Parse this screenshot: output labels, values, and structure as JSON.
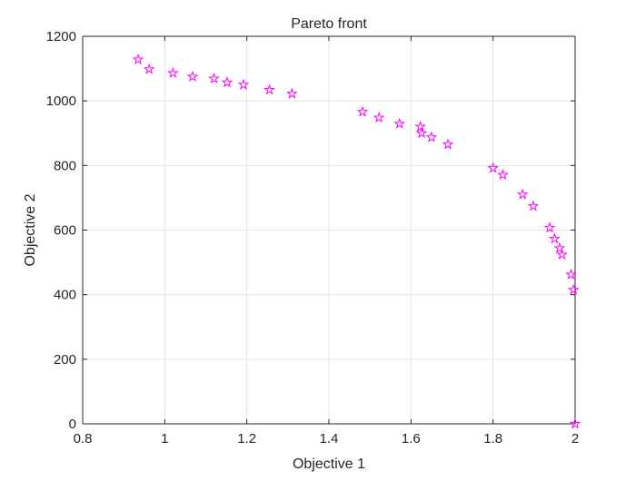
{
  "chart_data": {
    "type": "scatter",
    "title": "Pareto front",
    "xlabel": "Objective 1",
    "ylabel": "Objective 2",
    "xlim": [
      0.8,
      2.0
    ],
    "ylim": [
      0,
      1200
    ],
    "x_ticks": [
      0.8,
      1,
      1.2,
      1.4,
      1.6,
      1.8,
      2
    ],
    "x_tick_labels": [
      "0.8",
      "1",
      "1.2",
      "1.4",
      "1.6",
      "1.8",
      "2"
    ],
    "y_ticks": [
      0,
      200,
      400,
      600,
      800,
      1000,
      1200
    ],
    "y_tick_labels": [
      "0",
      "200",
      "400",
      "600",
      "800",
      "1000",
      "1200"
    ],
    "grid": true,
    "marker": "pentagram",
    "marker_color": "#ff00ff",
    "series": [
      {
        "x": [
          0.935,
          0.962,
          1.02,
          1.068,
          1.12,
          1.152,
          1.192,
          1.255,
          1.31,
          1.482,
          1.522,
          1.572,
          1.623,
          1.626,
          1.65,
          1.69,
          1.8,
          1.824,
          1.872,
          1.898,
          1.938,
          1.95,
          1.962,
          1.968,
          1.99,
          1.996,
          2.0
        ],
        "y": [
          1128,
          1098,
          1086,
          1075,
          1069,
          1057,
          1050,
          1034,
          1022,
          966,
          948,
          929,
          920,
          900,
          887,
          865,
          792,
          771,
          710,
          674,
          607,
          573,
          544,
          524,
          462,
          415,
          0
        ]
      }
    ]
  }
}
